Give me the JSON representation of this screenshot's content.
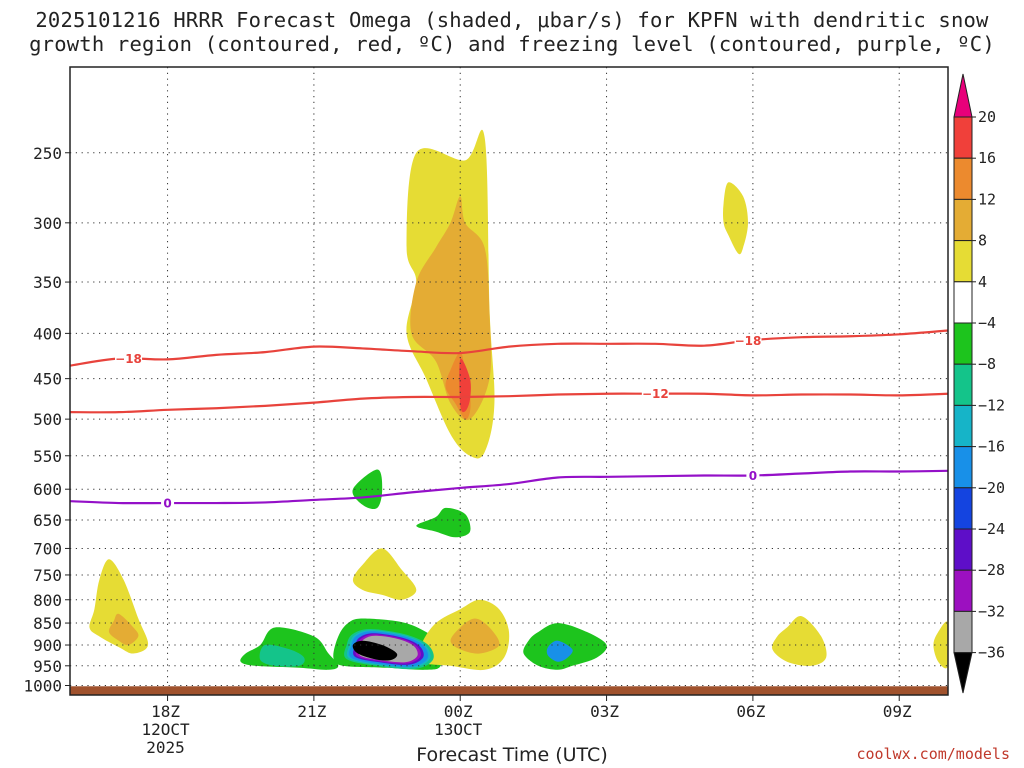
{
  "title": {
    "line1": "2025101216 HRRR Forecast Omega (shaded, μbar/s) for KPFN with dendritic snow",
    "line2": "growth region (contoured, red, ºC) and freezing level (contoured, purple, ºC)"
  },
  "credit": "coolwx.com/models",
  "chart_data": {
    "type": "heatmap",
    "title": "2025101216 HRRR Forecast Omega (shaded, μbar/s) for KPFN with dendritic snow growth region (contoured, red, ºC) and freezing level (contoured, purple, ºC)",
    "xlabel": "Forecast Time (UTC)",
    "ylabel": "",
    "x_ticks": [
      {
        "hour": 18,
        "lines": [
          "18Z",
          "12OCT",
          "2025"
        ]
      },
      {
        "hour": 21,
        "lines": [
          "21Z"
        ]
      },
      {
        "hour": 24,
        "lines": [
          "00Z",
          "13OCT"
        ]
      },
      {
        "hour": 27,
        "lines": [
          "03Z"
        ]
      },
      {
        "hour": 30,
        "lines": [
          "06Z"
        ]
      },
      {
        "hour": 33,
        "lines": [
          "09Z"
        ]
      }
    ],
    "xlim": [
      16,
      34
    ],
    "y_levels": [
      250,
      300,
      350,
      400,
      450,
      500,
      550,
      600,
      650,
      700,
      750,
      800,
      850,
      900,
      950,
      1000
    ],
    "ylim_hpa": [
      1025,
      200
    ],
    "y_scale": "log-pressure",
    "grid": true,
    "colorbar": {
      "labels": [
        "20",
        "16",
        "12",
        "8",
        "4",
        "-4",
        "-8",
        "-12",
        "-16",
        "-20",
        "-24",
        "-28",
        "-32",
        "-36"
      ],
      "colors": [
        "#e8007a",
        "#f0403a",
        "#ec8a2e",
        "#e4ac34",
        "#e6dc34",
        "#ffffff",
        "#1dc41d",
        "#14c48a",
        "#16b4c8",
        "#1890e8",
        "#1444e0",
        "#5e0ec8",
        "#9c10c0",
        "#a8a8a8",
        "#000000"
      ]
    },
    "contours": [
      {
        "label": "-18",
        "color": "#e8433c",
        "points": [
          [
            16,
            435
          ],
          [
            17,
            427
          ],
          [
            18,
            428
          ],
          [
            19,
            423
          ],
          [
            20,
            420
          ],
          [
            21,
            414
          ],
          [
            22,
            416
          ],
          [
            23,
            419
          ],
          [
            24,
            421
          ],
          [
            25,
            414
          ],
          [
            26,
            411
          ],
          [
            27,
            411
          ],
          [
            28,
            411
          ],
          [
            29,
            413
          ],
          [
            30,
            407
          ],
          [
            31,
            404
          ],
          [
            32,
            403
          ],
          [
            33,
            401
          ],
          [
            34,
            397
          ]
        ]
      },
      {
        "label": "-12",
        "color": "#e8433c",
        "points": [
          [
            16,
            491
          ],
          [
            17,
            491
          ],
          [
            18,
            488
          ],
          [
            19,
            486
          ],
          [
            20,
            483
          ],
          [
            21,
            479
          ],
          [
            22,
            474
          ],
          [
            23,
            472
          ],
          [
            24,
            472
          ],
          [
            25,
            471
          ],
          [
            26,
            469
          ],
          [
            27,
            468
          ],
          [
            28,
            468
          ],
          [
            29,
            468
          ],
          [
            30,
            470
          ],
          [
            31,
            469
          ],
          [
            32,
            469
          ],
          [
            33,
            470
          ],
          [
            34,
            468
          ]
        ]
      },
      {
        "label": "0",
        "color": "#9410c8",
        "points": [
          [
            16,
            619
          ],
          [
            17,
            622
          ],
          [
            18,
            622
          ],
          [
            19,
            622
          ],
          [
            20,
            621
          ],
          [
            21,
            617
          ],
          [
            22,
            613
          ],
          [
            23,
            605
          ],
          [
            24,
            598
          ],
          [
            25,
            592
          ],
          [
            26,
            582
          ],
          [
            27,
            581
          ],
          [
            28,
            580
          ],
          [
            29,
            579
          ],
          [
            30,
            579
          ],
          [
            31,
            576
          ],
          [
            32,
            573
          ],
          [
            33,
            573
          ],
          [
            34,
            572
          ]
        ]
      }
    ],
    "shaded_regions": [
      {
        "value": 4,
        "points": [
          [
            23.1,
            250
          ],
          [
            24.1,
            255
          ],
          [
            24.5,
            240
          ],
          [
            24.6,
            375
          ],
          [
            24.7,
            480
          ],
          [
            24.5,
            545
          ],
          [
            24.2,
            550
          ],
          [
            23.8,
            520
          ],
          [
            23.3,
            450
          ],
          [
            22.9,
            400
          ],
          [
            23.1,
            350
          ],
          [
            22.9,
            320
          ]
        ]
      },
      {
        "value": 8,
        "points": [
          [
            24.0,
            280
          ],
          [
            24.1,
            300
          ],
          [
            24.5,
            320
          ],
          [
            24.6,
            380
          ],
          [
            24.6,
            450
          ],
          [
            24.2,
            500
          ],
          [
            23.8,
            480
          ],
          [
            23.5,
            430
          ],
          [
            23.0,
            400
          ],
          [
            23.1,
            350
          ],
          [
            23.5,
            320
          ],
          [
            23.8,
            300
          ]
        ]
      },
      {
        "value": 12,
        "points": [
          [
            24.0,
            420
          ],
          [
            24.1,
            440
          ],
          [
            24.2,
            470
          ],
          [
            24.2,
            490
          ],
          [
            24.1,
            500
          ],
          [
            23.9,
            480
          ],
          [
            23.7,
            460
          ],
          [
            23.8,
            440
          ]
        ]
      },
      {
        "value": 16,
        "points": [
          [
            24.0,
            428
          ],
          [
            24.2,
            450
          ],
          [
            24.2,
            475
          ],
          [
            24.1,
            490
          ],
          [
            24.0,
            482
          ]
        ]
      },
      {
        "value": 4,
        "points": [
          [
            29.5,
            270
          ],
          [
            29.8,
            280
          ],
          [
            29.9,
            300
          ],
          [
            29.8,
            320
          ],
          [
            29.7,
            325
          ],
          [
            29.5,
            310
          ],
          [
            29.4,
            300
          ],
          [
            29.4,
            285
          ]
        ]
      },
      {
        "value": 4,
        "points": [
          [
            16.8,
            720
          ],
          [
            17.1,
            760
          ],
          [
            17.4,
            840
          ],
          [
            17.6,
            900
          ],
          [
            17.3,
            920
          ],
          [
            17.0,
            905
          ],
          [
            16.6,
            880
          ],
          [
            16.4,
            860
          ],
          [
            16.5,
            820
          ],
          [
            16.6,
            760
          ]
        ]
      },
      {
        "value": 8,
        "points": [
          [
            17.0,
            830
          ],
          [
            17.3,
            860
          ],
          [
            17.4,
            880
          ],
          [
            17.2,
            900
          ],
          [
            17.0,
            890
          ],
          [
            16.8,
            870
          ],
          [
            16.9,
            845
          ]
        ]
      },
      {
        "value": -4,
        "points": [
          [
            20.2,
            860
          ],
          [
            21.0,
            880
          ],
          [
            21.3,
            920
          ],
          [
            21.5,
            950
          ],
          [
            21.3,
            960
          ],
          [
            20.7,
            955
          ],
          [
            19.8,
            950
          ],
          [
            19.5,
            940
          ],
          [
            19.6,
            920
          ],
          [
            19.9,
            900
          ]
        ]
      },
      {
        "value": -8,
        "points": [
          [
            20.0,
            900
          ],
          [
            20.5,
            910
          ],
          [
            20.8,
            930
          ],
          [
            20.7,
            950
          ],
          [
            20.2,
            950
          ],
          [
            19.9,
            935
          ]
        ]
      },
      {
        "value": -4,
        "points": [
          [
            22.0,
            840
          ],
          [
            22.8,
            848
          ],
          [
            23.3,
            870
          ],
          [
            23.6,
            900
          ],
          [
            23.6,
            950
          ],
          [
            23.3,
            960
          ],
          [
            22.5,
            955
          ],
          [
            21.6,
            950
          ],
          [
            21.4,
            930
          ],
          [
            21.5,
            880
          ],
          [
            21.7,
            850
          ]
        ]
      },
      {
        "value": -20,
        "points": [
          [
            22.2,
            870
          ],
          [
            22.8,
            880
          ],
          [
            23.2,
            900
          ],
          [
            23.3,
            930
          ],
          [
            23.0,
            950
          ],
          [
            22.4,
            945
          ],
          [
            21.8,
            930
          ],
          [
            21.8,
            900
          ],
          [
            21.9,
            880
          ]
        ]
      },
      {
        "value": -36,
        "points": [
          [
            22.0,
            890
          ],
          [
            22.4,
            900
          ],
          [
            22.7,
            920
          ],
          [
            22.6,
            935
          ],
          [
            22.3,
            935
          ],
          [
            21.9,
            920
          ],
          [
            21.8,
            900
          ]
        ]
      },
      {
        "value": -4,
        "points": [
          [
            23.7,
            630
          ],
          [
            24.1,
            640
          ],
          [
            24.2,
            670
          ],
          [
            23.9,
            680
          ],
          [
            23.5,
            670
          ],
          [
            23.1,
            660
          ],
          [
            23.5,
            645
          ]
        ]
      },
      {
        "value": -4,
        "points": [
          [
            22.3,
            570
          ],
          [
            22.4,
            600
          ],
          [
            22.3,
            630
          ],
          [
            22.0,
            625
          ],
          [
            21.8,
            600
          ]
        ]
      },
      {
        "value": 4,
        "points": [
          [
            22.4,
            700
          ],
          [
            22.8,
            740
          ],
          [
            23.1,
            780
          ],
          [
            22.8,
            800
          ],
          [
            22.4,
            790
          ],
          [
            22.0,
            780
          ],
          [
            21.8,
            760
          ],
          [
            22.0,
            730
          ]
        ]
      },
      {
        "value": 4,
        "points": [
          [
            24.4,
            800
          ],
          [
            24.8,
            820
          ],
          [
            25.0,
            870
          ],
          [
            24.9,
            930
          ],
          [
            24.5,
            960
          ],
          [
            23.8,
            950
          ],
          [
            23.2,
            940
          ],
          [
            23.2,
            900
          ],
          [
            23.5,
            850
          ],
          [
            24.0,
            820
          ]
        ]
      },
      {
        "value": 8,
        "points": [
          [
            24.3,
            840
          ],
          [
            24.6,
            860
          ],
          [
            24.8,
            900
          ],
          [
            24.4,
            920
          ],
          [
            24.0,
            910
          ],
          [
            23.8,
            890
          ],
          [
            24.0,
            860
          ]
        ]
      },
      {
        "value": -4,
        "points": [
          [
            26.0,
            850
          ],
          [
            26.6,
            870
          ],
          [
            27.0,
            900
          ],
          [
            26.8,
            930
          ],
          [
            26.3,
            950
          ],
          [
            26.0,
            960
          ],
          [
            25.6,
            950
          ],
          [
            25.3,
            920
          ],
          [
            25.4,
            890
          ],
          [
            25.6,
            870
          ]
        ]
      },
      {
        "value": -16,
        "points": [
          [
            26.0,
            890
          ],
          [
            26.3,
            910
          ],
          [
            26.2,
            930
          ],
          [
            26.0,
            940
          ],
          [
            25.8,
            925
          ],
          [
            25.8,
            905
          ]
        ]
      },
      {
        "value": 4,
        "points": [
          [
            31.0,
            835
          ],
          [
            31.4,
            880
          ],
          [
            31.5,
            930
          ],
          [
            31.2,
            950
          ],
          [
            30.7,
            940
          ],
          [
            30.4,
            910
          ],
          [
            30.5,
            880
          ],
          [
            30.7,
            860
          ]
        ]
      },
      {
        "value": 4,
        "points": [
          [
            34.0,
            850
          ],
          [
            34.0,
            950
          ],
          [
            33.8,
            940
          ],
          [
            33.7,
            900
          ],
          [
            33.8,
            870
          ]
        ]
      }
    ]
  }
}
